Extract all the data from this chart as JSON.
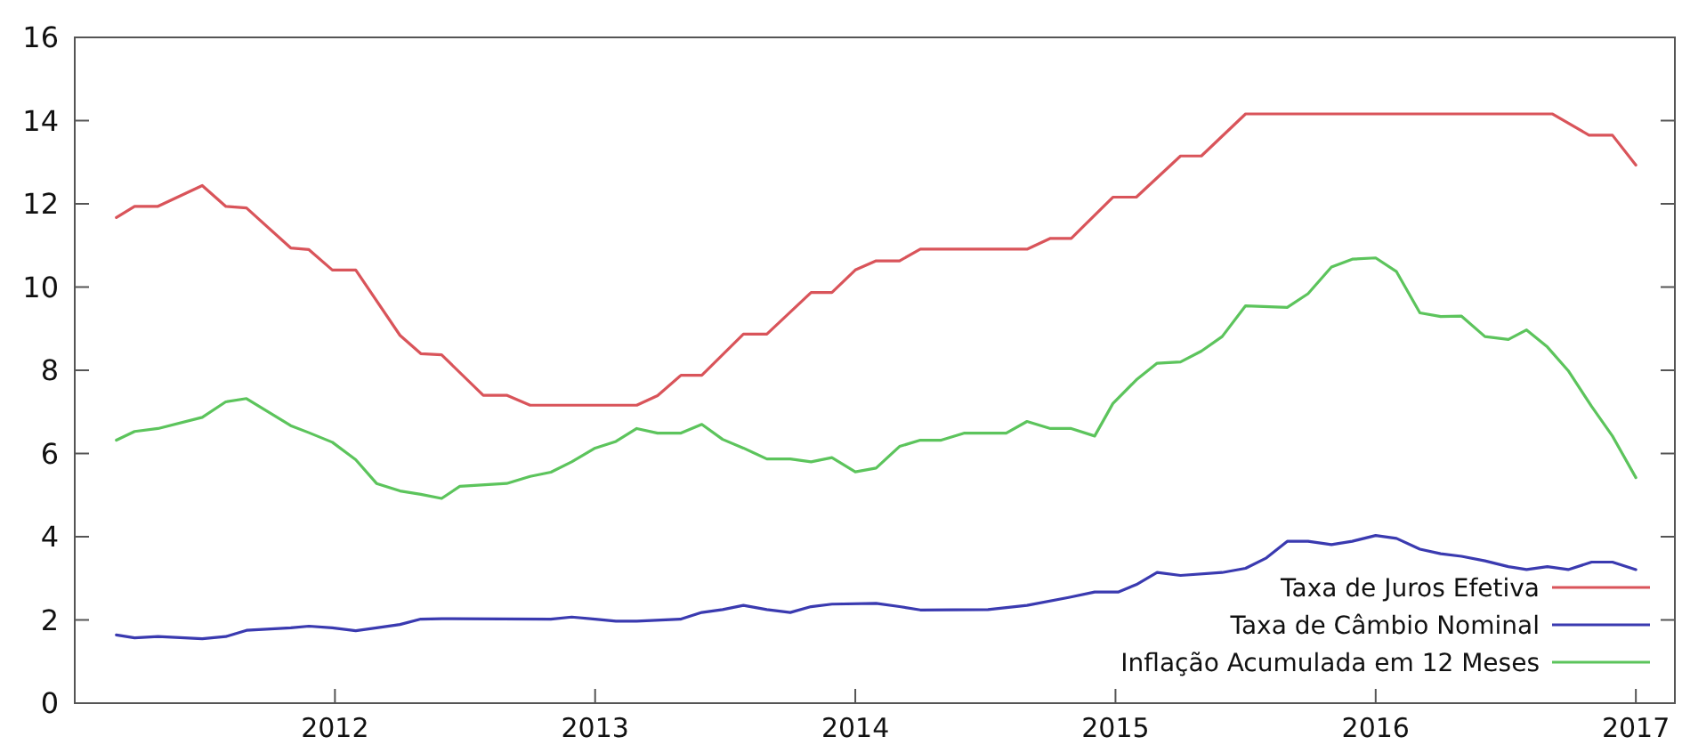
{
  "chart_data": {
    "type": "line",
    "xlim": [
      2011,
      2017.15
    ],
    "xticks": [
      2012,
      2013,
      2014,
      2015,
      2016,
      2017
    ],
    "ylim": [
      0,
      16
    ],
    "yticks": [
      0,
      2,
      4,
      6,
      8,
      10,
      12,
      14,
      16
    ],
    "grid": false,
    "legend": "bottom right",
    "line_style": "solid",
    "marker": "none",
    "series": [
      {
        "name": "Taxa de Juros Efetiva",
        "color": "#d9545a",
        "x": [
          2011.16,
          2011.23,
          2011.32,
          2011.49,
          2011.58,
          2011.66,
          2011.83,
          2011.9,
          2011.99,
          2012.08,
          2012.25,
          2012.33,
          2012.41,
          2012.57,
          2012.66,
          2012.75,
          2013.16,
          2013.24,
          2013.33,
          2013.41,
          2013.57,
          2013.66,
          2013.83,
          2013.91,
          2014.0,
          2014.08,
          2014.17,
          2014.25,
          2014.66,
          2014.75,
          2014.83,
          2014.99,
          2015.08,
          2015.25,
          2015.33,
          2015.5,
          2016.68,
          2016.82,
          2016.91,
          2017.0
        ],
        "values": [
          11.67,
          11.94,
          11.94,
          12.44,
          11.94,
          11.9,
          10.94,
          10.9,
          10.41,
          10.41,
          8.84,
          8.4,
          8.37,
          7.4,
          7.4,
          7.16,
          7.16,
          7.39,
          7.88,
          7.88,
          8.87,
          8.87,
          9.87,
          9.87,
          10.41,
          10.63,
          10.63,
          10.91,
          10.91,
          11.17,
          11.17,
          12.16,
          12.16,
          13.15,
          13.15,
          14.16,
          14.16,
          13.65,
          13.65,
          12.93
        ]
      },
      {
        "name": "Taxa de Câmbio Nominal",
        "color": "#3a3ab0",
        "x": [
          2011.16,
          2011.23,
          2011.32,
          2011.49,
          2011.58,
          2011.66,
          2011.83,
          2011.9,
          2011.99,
          2012.08,
          2012.16,
          2012.25,
          2012.33,
          2012.41,
          2012.83,
          2012.91,
          2013.0,
          2013.08,
          2013.16,
          2013.33,
          2013.41,
          2013.49,
          2013.57,
          2013.66,
          2013.75,
          2013.83,
          2013.91,
          2014.08,
          2014.17,
          2014.25,
          2014.51,
          2014.66,
          2014.82,
          2014.92,
          2015.01,
          2015.08,
          2015.16,
          2015.25,
          2015.41,
          2015.5,
          2015.58,
          2015.66,
          2015.74,
          2015.83,
          2015.91,
          2016.0,
          2016.08,
          2016.17,
          2016.25,
          2016.33,
          2016.42,
          2016.51,
          2016.58,
          2016.66,
          2016.74,
          2016.83,
          2016.91,
          2017.0
        ],
        "values": [
          1.64,
          1.57,
          1.6,
          1.55,
          1.6,
          1.75,
          1.81,
          1.85,
          1.81,
          1.74,
          1.81,
          1.89,
          2.02,
          2.03,
          2.02,
          2.07,
          2.02,
          1.97,
          1.97,
          2.02,
          2.18,
          2.25,
          2.35,
          2.25,
          2.18,
          2.32,
          2.38,
          2.4,
          2.32,
          2.24,
          2.25,
          2.35,
          2.54,
          2.67,
          2.67,
          2.85,
          3.14,
          3.07,
          3.14,
          3.24,
          3.49,
          3.89,
          3.89,
          3.81,
          3.89,
          4.03,
          3.96,
          3.7,
          3.59,
          3.53,
          3.42,
          3.28,
          3.21,
          3.28,
          3.21,
          3.39,
          3.39,
          3.21
        ]
      },
      {
        "name": "Inflação Acumulada em 12 Meses",
        "color": "#5cc45c",
        "x": [
          2011.16,
          2011.23,
          2011.32,
          2011.49,
          2011.58,
          2011.66,
          2011.83,
          2011.9,
          2011.99,
          2012.08,
          2012.16,
          2012.25,
          2012.33,
          2012.41,
          2012.48,
          2012.66,
          2012.75,
          2012.83,
          2012.91,
          2013.0,
          2013.08,
          2013.16,
          2013.24,
          2013.33,
          2013.41,
          2013.49,
          2013.57,
          2013.66,
          2013.75,
          2013.83,
          2013.91,
          2014.0,
          2014.08,
          2014.17,
          2014.25,
          2014.33,
          2014.42,
          2014.58,
          2014.66,
          2014.75,
          2014.83,
          2014.92,
          2014.99,
          2015.08,
          2015.16,
          2015.25,
          2015.33,
          2015.41,
          2015.5,
          2015.66,
          2015.74,
          2015.83,
          2015.91,
          2016.0,
          2016.08,
          2016.17,
          2016.25,
          2016.33,
          2016.42,
          2016.51,
          2016.58,
          2016.66,
          2016.74,
          2016.83,
          2016.91,
          2017.0
        ],
        "values": [
          6.32,
          6.53,
          6.6,
          6.87,
          7.24,
          7.32,
          6.67,
          6.5,
          6.27,
          5.85,
          5.28,
          5.1,
          5.02,
          4.92,
          5.21,
          5.28,
          5.45,
          5.55,
          5.8,
          6.13,
          6.29,
          6.6,
          6.49,
          6.49,
          6.7,
          6.34,
          6.13,
          5.87,
          5.87,
          5.8,
          5.9,
          5.56,
          5.65,
          6.17,
          6.32,
          6.32,
          6.49,
          6.49,
          6.77,
          6.6,
          6.6,
          6.42,
          7.2,
          7.77,
          8.17,
          8.2,
          8.46,
          8.81,
          9.55,
          9.51,
          9.84,
          10.48,
          10.67,
          10.7,
          10.37,
          9.38,
          9.29,
          9.3,
          8.81,
          8.74,
          8.97,
          8.56,
          7.99,
          7.13,
          6.42,
          5.42
        ]
      }
    ]
  }
}
